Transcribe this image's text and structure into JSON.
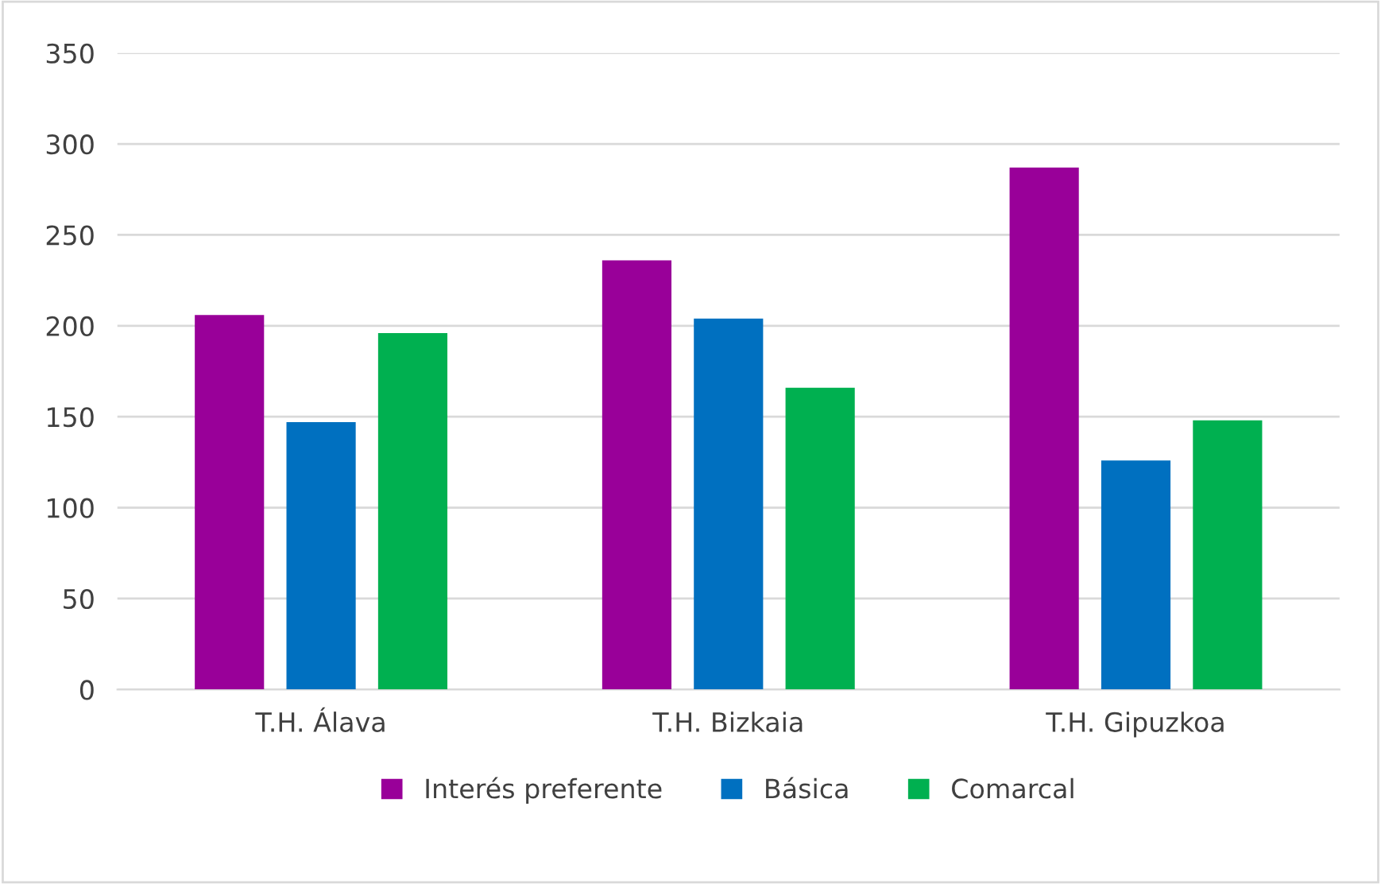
{
  "chart_data": {
    "type": "bar",
    "categories": [
      "T.H. Álava",
      "T.H. Bizkaia",
      "T.H. Gipuzkoa"
    ],
    "series": [
      {
        "name": "Interés preferente",
        "color": "#990099",
        "values": [
          206,
          236,
          287
        ]
      },
      {
        "name": "Básica",
        "color": "#0070c0",
        "values": [
          147,
          204,
          126
        ]
      },
      {
        "name": "Comarcal",
        "color": "#00b050",
        "values": [
          196,
          166,
          148
        ]
      }
    ],
    "ylim": [
      0,
      350
    ],
    "yticks": [
      0,
      50,
      100,
      150,
      200,
      250,
      300,
      350
    ],
    "grid": "y",
    "legend": "bottom"
  }
}
